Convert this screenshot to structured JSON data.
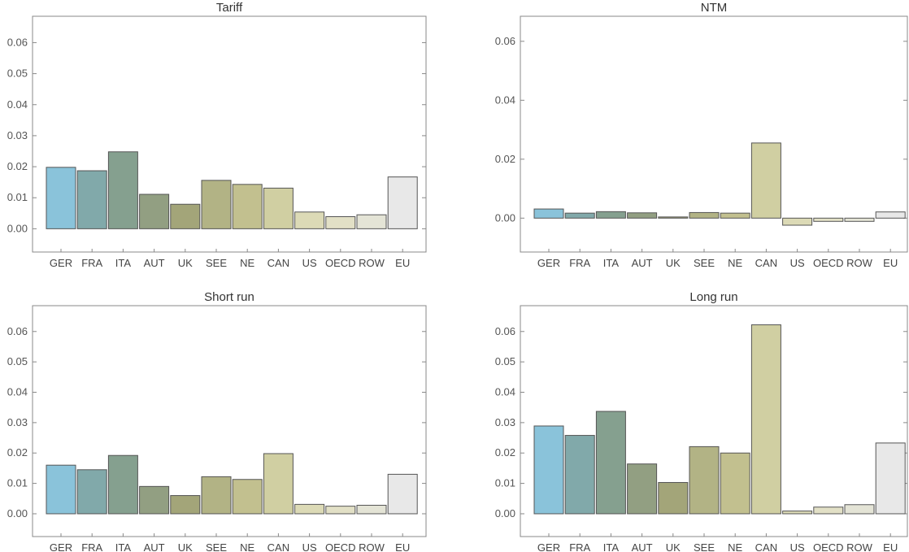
{
  "colors": [
    "#8ac3da",
    "#81a9aa",
    "#85a08f",
    "#929f82",
    "#a3a579",
    "#b2b385",
    "#c2c08f",
    "#d0cfa2",
    "#dcdab6",
    "#e2e0c6",
    "#e4e4d6",
    "#e8e8e8"
  ],
  "chart_data": [
    {
      "type": "bar",
      "title": "Tariff",
      "categories": [
        "GER",
        "FRA",
        "ITA",
        "AUT",
        "UK",
        "SEE",
        "NE",
        "CAN",
        "US",
        "OECD",
        "ROW",
        "EU"
      ],
      "values": [
        0.0198,
        0.0187,
        0.0248,
        0.0111,
        0.0079,
        0.0156,
        0.0143,
        0.0131,
        0.0054,
        0.0039,
        0.0045,
        0.0167
      ],
      "yticks": [
        0.0,
        0.01,
        0.02,
        0.03,
        0.04,
        0.05,
        0.06
      ],
      "ytick_labels": [
        "0.00",
        "0.01",
        "0.02",
        "0.03",
        "0.04",
        "0.05",
        "0.06"
      ],
      "ylim": [
        -0.0075,
        0.0685
      ]
    },
    {
      "type": "bar",
      "title": "NTM",
      "categories": [
        "GER",
        "FRA",
        "ITA",
        "AUT",
        "UK",
        "SEE",
        "NE",
        "CAN",
        "US",
        "OECD",
        "ROW",
        "EU"
      ],
      "values": [
        0.0031,
        0.0017,
        0.0022,
        0.0018,
        0.0004,
        0.0019,
        0.0017,
        0.0255,
        -0.0024,
        -0.0011,
        -0.0011,
        0.0021
      ],
      "yticks": [
        0.0,
        0.02,
        0.04,
        0.06
      ],
      "ytick_labels": [
        "0.00",
        "0.02",
        "0.04",
        "0.06"
      ],
      "ylim": [
        -0.0115,
        0.0685
      ]
    },
    {
      "type": "bar",
      "title": "Short run",
      "categories": [
        "GER",
        "FRA",
        "ITA",
        "AUT",
        "UK",
        "SEE",
        "NE",
        "CAN",
        "US",
        "OECD",
        "ROW",
        "EU"
      ],
      "values": [
        0.016,
        0.0145,
        0.0192,
        0.009,
        0.006,
        0.0122,
        0.0113,
        0.0198,
        0.0031,
        0.0025,
        0.0028,
        0.013
      ],
      "yticks": [
        0.0,
        0.01,
        0.02,
        0.03,
        0.04,
        0.05,
        0.06
      ],
      "ytick_labels": [
        "0.00",
        "0.01",
        "0.02",
        "0.03",
        "0.04",
        "0.05",
        "0.06"
      ],
      "ylim": [
        -0.0075,
        0.0685
      ]
    },
    {
      "type": "bar",
      "title": "Long run",
      "categories": [
        "GER",
        "FRA",
        "ITA",
        "AUT",
        "UK",
        "SEE",
        "NE",
        "CAN",
        "US",
        "OECD",
        "ROW",
        "EU"
      ],
      "values": [
        0.0289,
        0.0258,
        0.0337,
        0.0164,
        0.0103,
        0.0221,
        0.02,
        0.0622,
        0.0009,
        0.0022,
        0.003,
        0.0233
      ],
      "yticks": [
        0.0,
        0.01,
        0.02,
        0.03,
        0.04,
        0.05,
        0.06
      ],
      "ytick_labels": [
        "0.00",
        "0.01",
        "0.02",
        "0.03",
        "0.04",
        "0.05",
        "0.06"
      ],
      "ylim": [
        -0.0075,
        0.0685
      ]
    }
  ]
}
